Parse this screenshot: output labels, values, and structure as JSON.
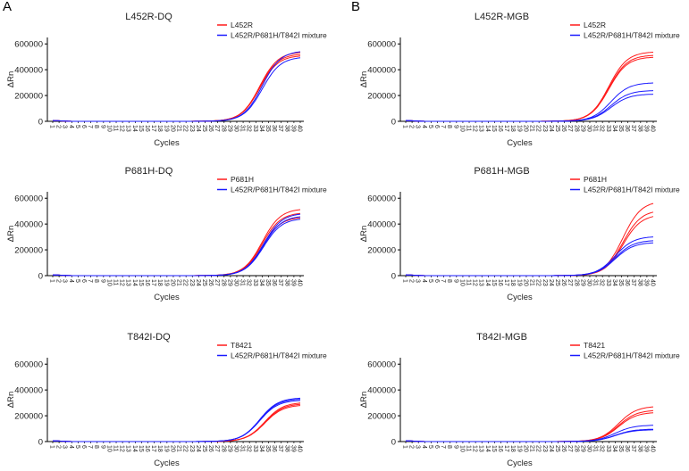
{
  "panel_labels": [
    "A",
    "B"
  ],
  "chart_data": [
    {
      "type": "line",
      "title": "L452R-DQ",
      "xlabel": "Cycles",
      "ylabel": "ΔRn",
      "xlim": [
        1,
        40
      ],
      "ylim": [
        0,
        650000
      ],
      "yticks": [
        0,
        200000,
        400000,
        600000
      ],
      "legend": [
        "L452R",
        "L452R/P681H/T842I mixture"
      ],
      "legend_position": "top-right",
      "series": [
        {
          "name": "L452R",
          "color": "#ff1a1a",
          "plateaus": [
            540000,
            525000,
            512000
          ],
          "midpoint": 33.6
        },
        {
          "name": "L452R/P681H/T842I mixture",
          "color": "#1a1aff",
          "plateaus": [
            548000,
            500000
          ],
          "midpoint": 34.0
        }
      ]
    },
    {
      "type": "line",
      "title": "P681H-DQ",
      "xlabel": "Cycles",
      "ylabel": "ΔRn",
      "xlim": [
        1,
        40
      ],
      "ylim": [
        0,
        650000
      ],
      "yticks": [
        0,
        200000,
        400000,
        600000
      ],
      "legend": [
        "P681H",
        "L452R/P681H/T842I mixture"
      ],
      "legend_position": "top-right",
      "series": [
        {
          "name": "P681H",
          "color": "#ff1a1a",
          "plateaus": [
            520000,
            490000,
            455000
          ],
          "midpoint": 34.0
        },
        {
          "name": "L452R/P681H/T842I mixture",
          "color": "#1a1aff",
          "plateaus": [
            485000,
            465000,
            445000
          ],
          "midpoint": 34.2
        }
      ]
    },
    {
      "type": "line",
      "title": "T842I-DQ",
      "xlabel": "Cycles",
      "ylabel": "ΔRn",
      "xlim": [
        1,
        40
      ],
      "ylim": [
        0,
        650000
      ],
      "yticks": [
        0,
        200000,
        400000,
        600000
      ],
      "legend": [
        "T8421",
        "L452R/P681H/T842I mixture"
      ],
      "legend_position": "top-right",
      "series": [
        {
          "name": "T8421",
          "color": "#ff1a1a",
          "plateaus": [
            305000,
            295000,
            285000
          ],
          "midpoint": 34.4
        },
        {
          "name": "L452R/P681H/T842I mixture",
          "color": "#1a1aff",
          "plateaus": [
            340000,
            332000,
            322000
          ],
          "midpoint": 33.6
        }
      ]
    },
    {
      "type": "line",
      "title": "L452R-MGB",
      "xlabel": "Cycles",
      "ylabel": "ΔRn",
      "xlim": [
        1,
        40
      ],
      "ylim": [
        0,
        650000
      ],
      "yticks": [
        0,
        200000,
        400000,
        600000
      ],
      "legend": [
        "L452R",
        "L452R/P681H/T842I mixture"
      ],
      "legend_position": "top-right",
      "series": [
        {
          "name": "L452R",
          "color": "#ff1a1a",
          "plateaus": [
            540000,
            515000,
            500000
          ],
          "midpoint": 33.0
        },
        {
          "name": "L452R/P681H/T842I mixture",
          "color": "#1a1aff",
          "plateaus": [
            300000,
            240000,
            212000
          ],
          "midpoint": 33.3
        }
      ]
    },
    {
      "type": "line",
      "title": "P681H-MGB",
      "xlabel": "Cycles",
      "ylabel": "ΔRn",
      "xlim": [
        1,
        40
      ],
      "ylim": [
        0,
        650000
      ],
      "yticks": [
        0,
        200000,
        400000,
        600000
      ],
      "legend": [
        "P681H",
        "L452R/P681H/T842I mixture"
      ],
      "legend_position": "top-right",
      "series": [
        {
          "name": "P681H",
          "color": "#ff1a1a",
          "plateaus": [
            580000,
            510000,
            475000
          ],
          "midpoint": 35.2
        },
        {
          "name": "L452R/P681H/T842I mixture",
          "color": "#1a1aff",
          "plateaus": [
            305000,
            275000,
            258000
          ],
          "midpoint": 34.0
        }
      ]
    },
    {
      "type": "line",
      "title": "T842I-MGB",
      "xlabel": "Cycles",
      "ylabel": "ΔRn",
      "xlim": [
        1,
        40
      ],
      "ylim": [
        0,
        650000
      ],
      "yticks": [
        0,
        200000,
        400000,
        600000
      ],
      "legend": [
        "T8421",
        "L452R/P681H/T842I mixture"
      ],
      "legend_position": "top-right",
      "series": [
        {
          "name": "T8421",
          "color": "#ff1a1a",
          "plateaus": [
            275000,
            245000,
            228000
          ],
          "midpoint": 34.5
        },
        {
          "name": "L452R/P681H/T842I mixture",
          "color": "#1a1aff",
          "plateaus": [
            128000,
            97000,
            92000
          ],
          "midpoint": 34.0
        }
      ]
    }
  ]
}
